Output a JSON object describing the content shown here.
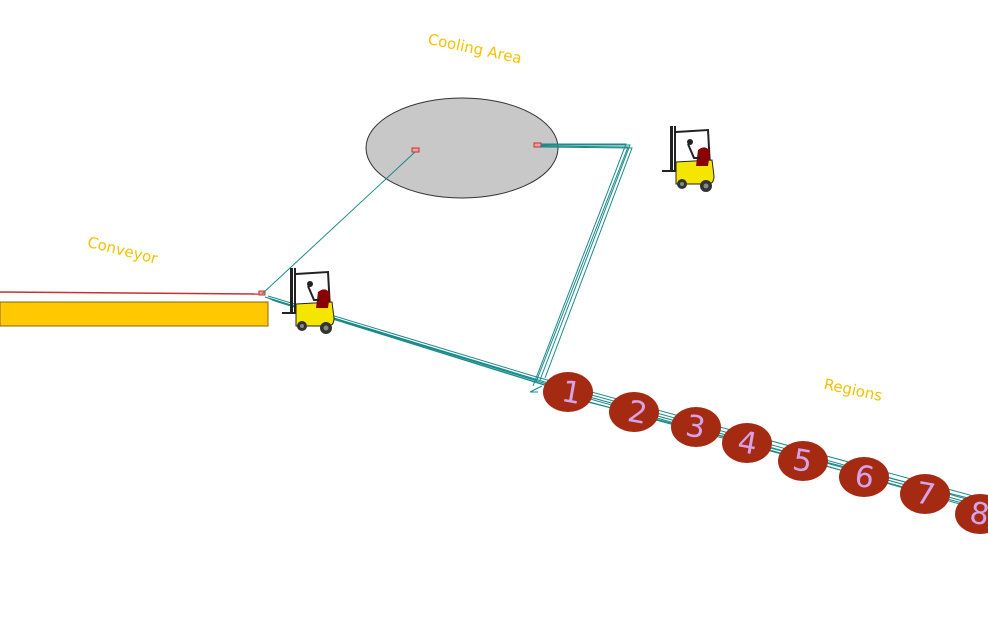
{
  "labels": {
    "cooling_area": "Cooling Area",
    "conveyor": "Conveyor",
    "regions": "Regions"
  },
  "regions": [
    "1",
    "2",
    "3",
    "4",
    "5",
    "6",
    "7",
    "8"
  ],
  "colors": {
    "background": "#ffffff",
    "label_text": "#f2c200",
    "conveyor_bar": "#ffc800",
    "cooling_area_fill": "#c8c8c8",
    "region_fill": "#a52a12",
    "region_number": "#d6a2e8",
    "path_lines": "#1a8a8a",
    "conveyor_line": "#c83030",
    "forklift_body": "#f5e600",
    "forklift_seat": "#8b0000"
  }
}
